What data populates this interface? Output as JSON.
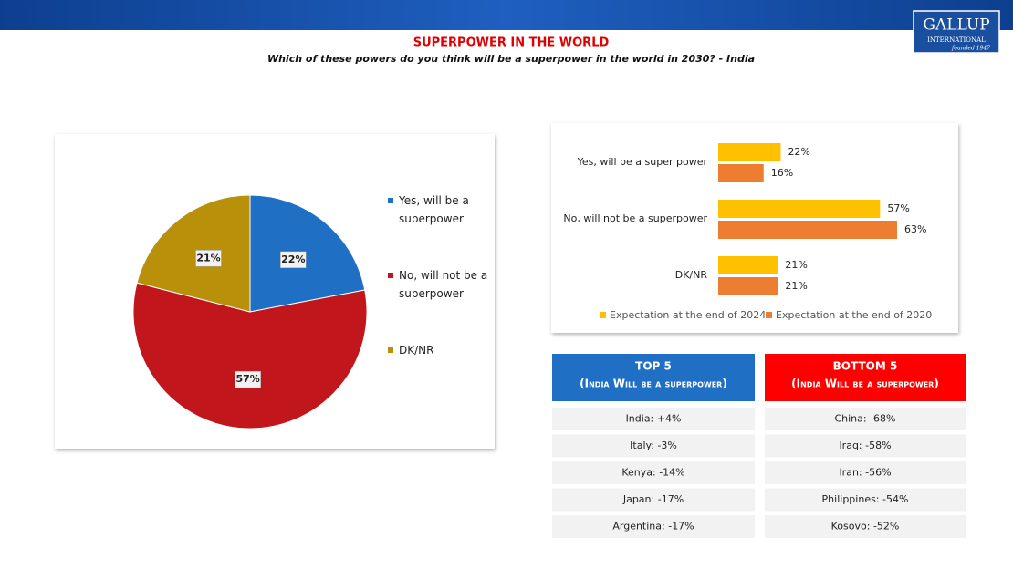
{
  "header": {
    "logo": "GALLUP",
    "logo_sub": "INTERNATIONAL",
    "logo_founded": "founded 1947",
    "title": "SUPERPOWER IN THE WORLD",
    "subtitle": "Which of these powers do you think will be a superpower in the world in 2030? - India"
  },
  "chart_data": [
    {
      "type": "pie",
      "categories": [
        "Yes, will be a superpower",
        "No, will not be a superpower",
        "DK/NR"
      ],
      "values": [
        22,
        57,
        21
      ],
      "value_labels": [
        "22%",
        "57%",
        "21%"
      ],
      "colors": [
        "#1f6fc5",
        "#c0161c",
        "#b8900a"
      ],
      "legend": "right"
    },
    {
      "type": "hbar",
      "categories": [
        "Yes, will be a super power",
        "No, will not be a superpower",
        "DK/NR"
      ],
      "series": [
        {
          "name": "Expectation at the end of 2024",
          "color": "#ffc000",
          "values": [
            22,
            57,
            21
          ],
          "value_labels": [
            "22%",
            "57%",
            "21%"
          ]
        },
        {
          "name": "Expectation at the end of 2020",
          "color": "#ed7d31",
          "values": [
            16,
            63,
            21
          ],
          "value_labels": [
            "16%",
            "63%",
            "21%"
          ]
        }
      ],
      "legend": "bottom"
    }
  ],
  "top5": {
    "title": "TOP 5",
    "subtitle": "(India Will be a superpower)",
    "rows": [
      "India: +4%",
      "Italy: -3%",
      "Kenya: -14%",
      "Japan: -17%",
      "Argentina: -17%"
    ]
  },
  "bottom5": {
    "title": "BOTTOM 5",
    "subtitle": "(India Will be a superpower)",
    "rows": [
      "China: -68%",
      "Iraq: -58%",
      "Iran: -56%",
      "Philippines: -54%",
      "Kosovo: -52%"
    ]
  }
}
